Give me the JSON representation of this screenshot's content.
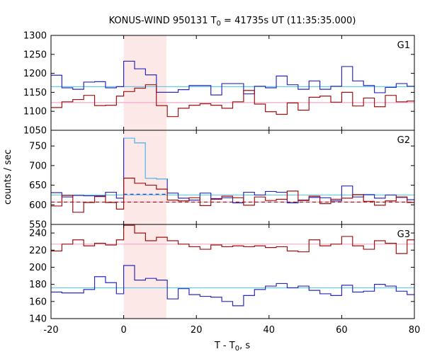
{
  "chart_data": {
    "type": "line",
    "title": {
      "prefix": "KONUS-WIND 950131 T",
      "sub": "0",
      "suffix": " = 41735s UT (11:35:35.000)"
    },
    "xlabel": {
      "prefix": "T - T",
      "sub": "0",
      "suffix": ", s"
    },
    "ylabel": "counts / sec",
    "xlim": [
      -20,
      80
    ],
    "xticks": [
      -20,
      0,
      20,
      40,
      60,
      80
    ],
    "xtick_labels": [
      "-20",
      "0",
      "20",
      "40",
      "60",
      "80"
    ],
    "highlight_region": [
      0,
      11.8
    ],
    "colors": {
      "blue": "#2a2abf",
      "red": "#a01010",
      "light_blue": "#66ccee",
      "pink": "#f0a8c8",
      "highlight": "#fde8e8"
    },
    "panels": [
      {
        "name": "G1",
        "ylim": [
          1050,
          1300
        ],
        "yticks": [
          1050,
          1100,
          1150,
          1200,
          1250,
          1300
        ],
        "ytick_labels": [
          "1050",
          "1100",
          "1150",
          "1200",
          "1250",
          "1300"
        ],
        "bin_edges": [
          -20,
          -17,
          -14,
          -11,
          -8,
          -5,
          -2,
          0,
          3,
          6,
          9,
          12,
          15,
          18,
          21,
          24,
          27,
          30,
          33,
          36,
          39,
          42,
          45,
          48,
          51,
          54,
          57,
          60,
          63,
          66,
          69,
          72,
          75,
          78,
          80
        ],
        "series": [
          {
            "color": "blue",
            "values": [
              1195,
              1162,
              1158,
              1177,
              1178,
              1162,
              1165,
              1232,
              1212,
              1196,
              1150,
              1150,
              1157,
              1168,
              1168,
              1143,
              1173,
              1173,
              1146,
              1166,
              1162,
              1193,
              1170,
              1158,
              1180,
              1158,
              1166,
              1218,
              1180,
              1168,
              1149,
              1163,
              1173,
              1166
            ]
          },
          {
            "color": "red",
            "values": [
              1110,
              1125,
              1131,
              1142,
              1115,
              1116,
              1140,
              1152,
              1161,
              1170,
              1115,
              1086,
              1108,
              1116,
              1120,
              1116,
              1108,
              1125,
              1155,
              1119,
              1099,
              1092,
              1122,
              1103,
              1137,
              1140,
              1124,
              1150,
              1114,
              1135,
              1112,
              1142,
              1125,
              1127
            ]
          }
        ],
        "fits": [
          {
            "color": "light_blue",
            "value": 1165,
            "style": "solid"
          },
          {
            "color": "pink",
            "value": 1123,
            "style": "solid"
          }
        ]
      },
      {
        "name": "G2",
        "ylim": [
          550,
          790
        ],
        "yticks": [
          550,
          600,
          650,
          700,
          750
        ],
        "ytick_labels": [
          "550",
          "600",
          "650",
          "700",
          "750"
        ],
        "bin_edges": [
          -20,
          -17,
          -14,
          -11,
          -8,
          -5,
          -2,
          0,
          3,
          6,
          9,
          12,
          15,
          18,
          21,
          24,
          27,
          30,
          33,
          36,
          39,
          42,
          45,
          48,
          51,
          54,
          57,
          60,
          63,
          66,
          69,
          72,
          75,
          78,
          80
        ],
        "series": [
          {
            "color": "blue",
            "values": [
              631,
              620,
              624,
              623,
              623,
              632,
              617,
              770,
              758,
              668,
              666,
              630,
              617,
              612,
              630,
              616,
              618,
              605,
              632,
              625,
              634,
              632,
              605,
              611,
              619,
              618,
              610,
              648,
              620,
              626,
              617,
              625,
              619,
              613
            ]
          },
          {
            "color": "red",
            "values": [
              597,
              624,
              581,
              606,
              621,
              606,
              589,
              668,
              655,
              650,
              640,
              612,
              610,
              618,
              598,
              614,
              622,
              618,
              599,
              620,
              611,
              614,
              635,
              612,
              622,
              603,
              614,
              617,
              626,
              609,
              599,
              610,
              620,
              606
            ]
          },
          {
            "color": "light_blue",
            "x_end": 12,
            "values": [
              null,
              null,
              null,
              null,
              null,
              null,
              null,
              770,
              758,
              668,
              666
            ]
          }
        ],
        "fits": [
          {
            "color": "light_blue",
            "value": 625,
            "style": "solid"
          },
          {
            "color": "blue",
            "value": 627,
            "style": "dashed",
            "x_range": [
              0,
              12
            ]
          },
          {
            "color": "pink",
            "value": 607,
            "style": "solid"
          },
          {
            "color": "red",
            "value": 607,
            "style": "dashed"
          }
        ]
      },
      {
        "name": "G3",
        "ylim": [
          140,
          250
        ],
        "yticks": [
          140,
          160,
          180,
          200,
          220,
          240
        ],
        "ytick_labels": [
          "140",
          "160",
          "180",
          "200",
          "220",
          "240"
        ],
        "bin_edges": [
          -20,
          -17,
          -14,
          -11,
          -8,
          -5,
          -2,
          0,
          3,
          6,
          9,
          12,
          15,
          18,
          21,
          24,
          27,
          30,
          33,
          36,
          39,
          42,
          45,
          48,
          51,
          54,
          57,
          60,
          63,
          66,
          69,
          72,
          75,
          78,
          80
        ],
        "series": [
          {
            "color": "red",
            "values": [
              219,
              227,
              232,
              225,
              228,
              226,
              232,
              249,
              240,
              231,
              235,
              231,
              227,
              224,
              221,
              226,
              224,
              225,
              224,
              225,
              223,
              224,
              219,
              218,
              232,
              225,
              227,
              236,
              225,
              221,
              231,
              228,
              216,
              232
            ]
          },
          {
            "color": "blue",
            "values": [
              171,
              170,
              170,
              174,
              189,
              182,
              169,
              202,
              185,
              187,
              185,
              163,
              175,
              168,
              166,
              165,
              160,
              155,
              167,
              174,
              178,
              181,
              176,
              178,
              173,
              169,
              167,
              179,
              171,
              172,
              180,
              178,
              172,
              168
            ]
          }
        ],
        "fits": [
          {
            "color": "pink",
            "value": 227,
            "style": "solid"
          },
          {
            "color": "light_blue",
            "value": 176,
            "style": "solid"
          }
        ]
      }
    ]
  }
}
